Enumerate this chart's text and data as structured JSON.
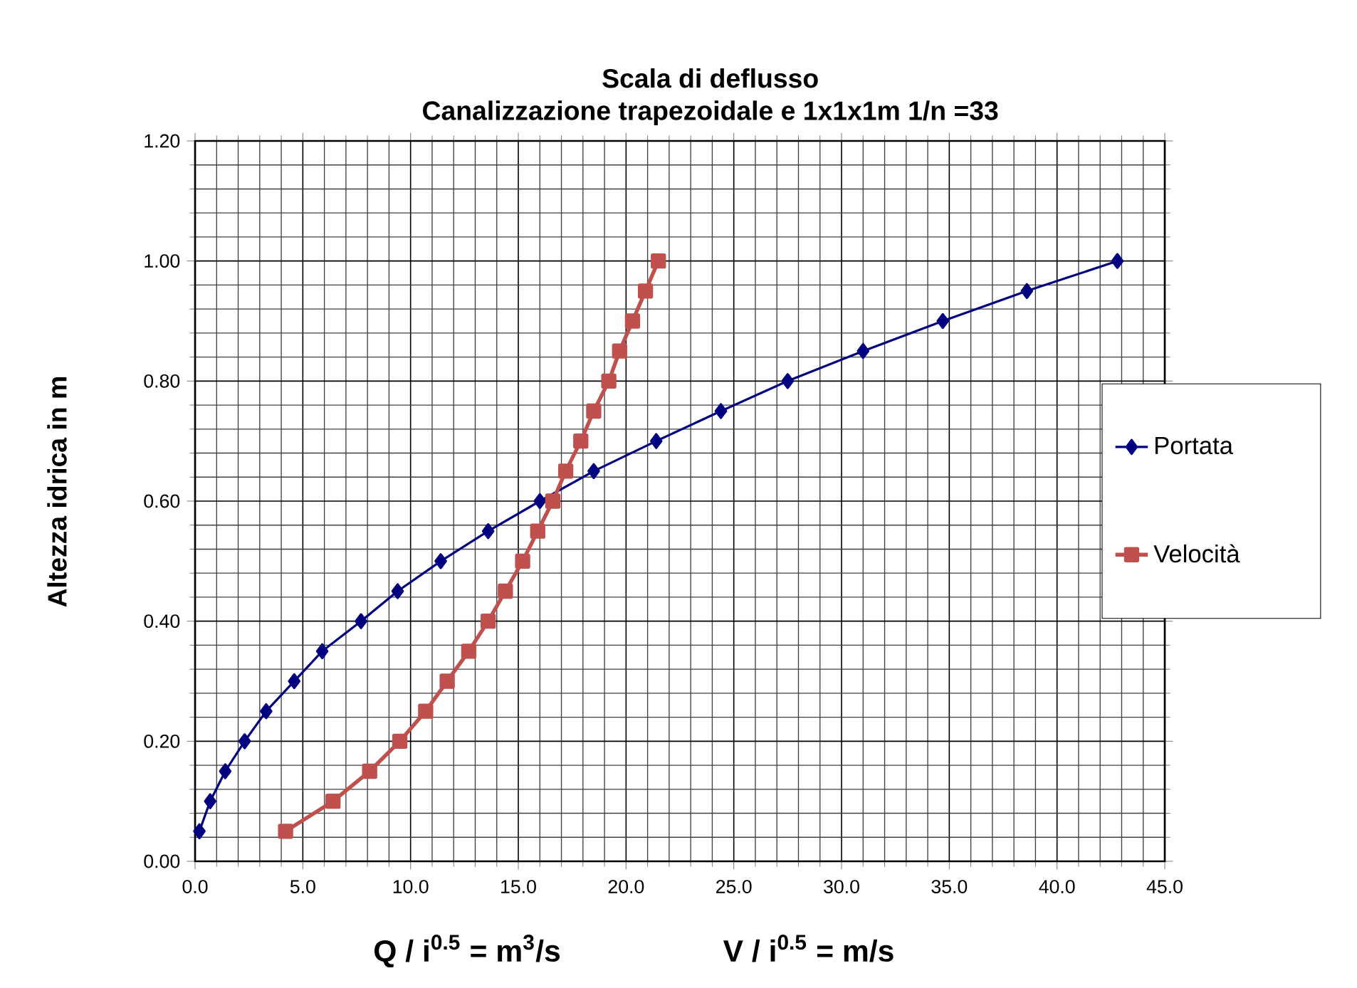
{
  "chart_data": {
    "type": "line",
    "title": "Scala di deflusso\nCanalizzazione trapezoidale e  1x1x1m   1/n =33",
    "ylabel": "Altezza idrica in m",
    "annotations": [
      "Q / i$^{0.5}$  = m$^{3}$/s",
      "V / i$^{0.5}$ = m/s"
    ],
    "xlim": [
      0,
      45
    ],
    "ylim": [
      0,
      1.2
    ],
    "xticks": [
      {
        "value": 0,
        "label": "0.0"
      },
      {
        "value": 5,
        "label": "5.0"
      },
      {
        "value": 10,
        "label": "10.0"
      },
      {
        "value": 15,
        "label": "15.0"
      },
      {
        "value": 20,
        "label": "20.0"
      },
      {
        "value": 25,
        "label": "25.0"
      },
      {
        "value": 30,
        "label": "30.0"
      },
      {
        "value": 35,
        "label": "35.0"
      },
      {
        "value": 40,
        "label": "40.0"
      },
      {
        "value": 45,
        "label": "45.0"
      }
    ],
    "yticks": [
      {
        "value": 0,
        "label": "0.00"
      },
      {
        "value": 0.2,
        "label": "0.20"
      },
      {
        "value": 0.4,
        "label": "0.40"
      },
      {
        "value": 0.6,
        "label": "0.60"
      },
      {
        "value": 0.8,
        "label": "0.80"
      },
      {
        "value": 1.0,
        "label": "1.00"
      },
      {
        "value": 1.2,
        "label": "1.20"
      }
    ],
    "grid": true,
    "legend": "right",
    "line_style": "solid",
    "series": [
      {
        "name": "Portata",
        "color": "#000080",
        "marker": "diamond",
        "x": [
          0.2,
          0.7,
          1.4,
          2.3,
          3.3,
          4.6,
          5.9,
          7.7,
          9.4,
          11.4,
          13.6,
          16.0,
          18.5,
          21.4,
          24.4,
          27.5,
          31.0,
          34.7,
          38.6,
          42.8
        ],
        "values": [
          0.05,
          0.1,
          0.15,
          0.2,
          0.25,
          0.3,
          0.35,
          0.4,
          0.45,
          0.5,
          0.55,
          0.6,
          0.65,
          0.7,
          0.75,
          0.8,
          0.85,
          0.9,
          0.95,
          1.0
        ]
      },
      {
        "name": "Velocità",
        "color": "#c0504d",
        "marker": "square",
        "x": [
          4.2,
          6.4,
          8.1,
          9.5,
          10.7,
          11.7,
          12.7,
          13.6,
          14.4,
          15.2,
          15.9,
          16.6,
          17.2,
          17.9,
          18.5,
          19.2,
          19.7,
          20.3,
          20.9,
          21.5
        ],
        "values": [
          0.05,
          0.1,
          0.15,
          0.2,
          0.25,
          0.3,
          0.35,
          0.4,
          0.45,
          0.5,
          0.55,
          0.6,
          0.65,
          0.7,
          0.75,
          0.8,
          0.85,
          0.9,
          0.95,
          1.0
        ]
      }
    ]
  }
}
